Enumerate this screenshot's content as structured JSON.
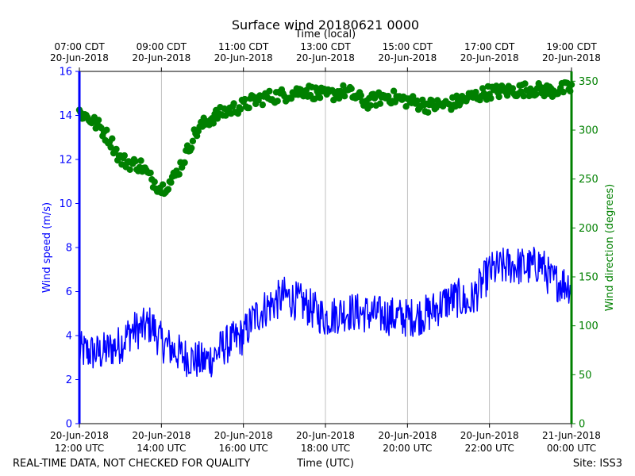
{
  "chart_data": {
    "type": "line",
    "title": "Surface wind 20180621 0000",
    "top_axis_label": "Time (local)",
    "xlabel": "Time (UTC)",
    "footer_left": "REAL-TIME DATA, NOT CHECKED FOR QUALITY",
    "footer_right": "Site: ISS3",
    "x_range_hours_utc": [
      12,
      24
    ],
    "bottom_ticks": [
      {
        "hour": 12,
        "date": "20-Jun-2018",
        "time": "12:00 UTC"
      },
      {
        "hour": 14,
        "date": "20-Jun-2018",
        "time": "14:00 UTC"
      },
      {
        "hour": 16,
        "date": "20-Jun-2018",
        "time": "16:00 UTC"
      },
      {
        "hour": 18,
        "date": "20-Jun-2018",
        "time": "18:00 UTC"
      },
      {
        "hour": 20,
        "date": "20-Jun-2018",
        "time": "20:00 UTC"
      },
      {
        "hour": 22,
        "date": "20-Jun-2018",
        "time": "22:00 UTC"
      },
      {
        "hour": 24,
        "date": "21-Jun-2018",
        "time": "00:00 UTC"
      }
    ],
    "top_ticks": [
      {
        "hour": 12,
        "time": "07:00 CDT",
        "date": "20-Jun-2018"
      },
      {
        "hour": 14,
        "time": "09:00 CDT",
        "date": "20-Jun-2018"
      },
      {
        "hour": 16,
        "time": "11:00 CDT",
        "date": "20-Jun-2018"
      },
      {
        "hour": 18,
        "time": "13:00 CDT",
        "date": "20-Jun-2018"
      },
      {
        "hour": 20,
        "time": "15:00 CDT",
        "date": "20-Jun-2018"
      },
      {
        "hour": 22,
        "time": "17:00 CDT",
        "date": "20-Jun-2018"
      },
      {
        "hour": 24,
        "time": "19:00 CDT",
        "date": "20-Jun-2018"
      }
    ],
    "left_axis": {
      "label": "Wind speed (m/s)",
      "range": [
        0,
        16
      ],
      "ticks": [
        0,
        2,
        4,
        6,
        8,
        10,
        12,
        14,
        16
      ],
      "color": "#0000ff"
    },
    "right_axis": {
      "label": "Wind direction (degrees)",
      "range": [
        0,
        360
      ],
      "ticks": [
        0,
        50,
        100,
        150,
        200,
        250,
        300,
        350
      ],
      "color": "#008000"
    },
    "grid": "vertical",
    "series": [
      {
        "name": "Wind speed",
        "axis": "left",
        "style": "line",
        "color": "#0000ff",
        "x_hours_utc": [
          12.0,
          12.5,
          13.0,
          13.25,
          13.5,
          13.75,
          14.0,
          14.5,
          15.0,
          15.25,
          15.5,
          16.0,
          16.25,
          16.5,
          17.0,
          17.5,
          18.0,
          18.5,
          19.0,
          19.5,
          20.0,
          20.5,
          21.0,
          21.25,
          21.5,
          22.0,
          22.5,
          23.0,
          23.25,
          23.5,
          24.0
        ],
        "values": [
          3.3,
          3.2,
          3.6,
          4.2,
          4.3,
          4.5,
          3.7,
          3.1,
          2.8,
          3.0,
          3.5,
          4.0,
          4.8,
          5.2,
          5.8,
          5.4,
          4.8,
          5.1,
          5.0,
          4.9,
          4.8,
          5.0,
          5.6,
          5.7,
          5.4,
          6.9,
          7.2,
          7.1,
          7.3,
          6.5,
          6.3
        ],
        "noise": 0.9,
        "sample_minutes": 1
      },
      {
        "name": "Wind direction",
        "axis": "right",
        "style": "scatter",
        "color": "#008000",
        "x_hours_utc": [
          12.0,
          12.25,
          12.5,
          12.75,
          13.0,
          13.25,
          13.5,
          13.75,
          14.0,
          14.25,
          14.4,
          14.6,
          14.8,
          15.0,
          15.25,
          15.5,
          15.75,
          16.0,
          16.25,
          16.5,
          17.0,
          17.5,
          18.0,
          18.5,
          19.0,
          19.5,
          20.0,
          20.5,
          21.0,
          21.5,
          22.0,
          22.5,
          23.0,
          23.5,
          24.0
        ],
        "values": [
          318,
          312,
          303,
          290,
          270,
          266,
          264,
          250,
          240,
          248,
          258,
          275,
          295,
          305,
          313,
          318,
          322,
          325,
          330,
          333,
          336,
          341,
          335,
          340,
          328,
          335,
          330,
          325,
          326,
          333,
          339,
          340,
          342,
          340,
          343
        ],
        "noise": 7,
        "sample_minutes": 2
      }
    ]
  }
}
